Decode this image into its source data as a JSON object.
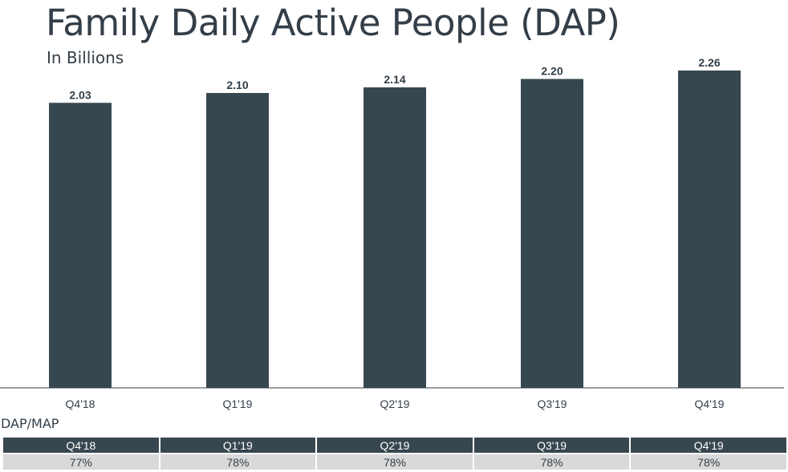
{
  "title": "Family Daily Active People (DAP)",
  "subtitle": "In Billions",
  "chart_data": {
    "type": "bar",
    "categories": [
      "Q4'18",
      "Q1'19",
      "Q2'19",
      "Q3'19",
      "Q4'19"
    ],
    "values": [
      2.03,
      2.1,
      2.14,
      2.2,
      2.26
    ],
    "data_labels": [
      "2.03",
      "2.10",
      "2.14",
      "2.20",
      "2.26"
    ],
    "title": "Family Daily Active People (DAP)",
    "subtitle": "In Billions",
    "xlabel": "",
    "ylabel": "",
    "ylim": [
      0,
      2.26
    ],
    "grid": false,
    "bar_color": "#37474f"
  },
  "table": {
    "title": "DAP/MAP",
    "headers": [
      "Q4'18",
      "Q1'19",
      "Q2'19",
      "Q3'19",
      "Q4'19"
    ],
    "values": [
      "77%",
      "78%",
      "78%",
      "78%",
      "78%"
    ],
    "header_color": "#37474f",
    "cell_color": "#d9d9d9"
  }
}
